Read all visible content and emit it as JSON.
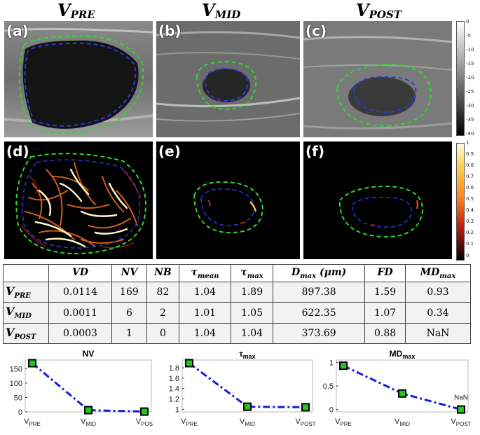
{
  "column_titles": [
    {
      "main": "V",
      "sub": "PRE"
    },
    {
      "main": "V",
      "sub": "MID"
    },
    {
      "main": "V",
      "sub": "POST"
    }
  ],
  "panels": {
    "top": [
      {
        "label": "(a)"
      },
      {
        "label": "(b)"
      },
      {
        "label": "(c)"
      }
    ],
    "bottom": [
      {
        "label": "(d)"
      },
      {
        "label": "(e)"
      },
      {
        "label": "(f)"
      }
    ]
  },
  "colorbar_top": {
    "ticks": [
      "0",
      "-5",
      "-10",
      "-15",
      "-20",
      "-25",
      "-30",
      "-35",
      "-40"
    ]
  },
  "colorbar_bottom": {
    "ticks": [
      "1",
      "0.9",
      "0.8",
      "0.7",
      "0.6",
      "0.5",
      "0.4",
      "0.3",
      "0.2",
      "0.1",
      "0"
    ]
  },
  "table": {
    "headers": [
      {
        "main": "VD",
        "sub": ""
      },
      {
        "main": "NV",
        "sub": ""
      },
      {
        "main": "NB",
        "sub": ""
      },
      {
        "main": "τ",
        "sub": "mean"
      },
      {
        "main": "τ",
        "sub": "max"
      },
      {
        "main": "D",
        "sub": "max",
        "suffix": " (μm)"
      },
      {
        "main": "FD",
        "sub": ""
      },
      {
        "main": "MD",
        "sub": "max"
      }
    ],
    "rows": [
      {
        "head": {
          "main": "V",
          "sub": "PRE"
        },
        "cells": [
          "0.0114",
          "169",
          "82",
          "1.04",
          "1.89",
          "897.38",
          "1.59",
          "0.93"
        ]
      },
      {
        "head": {
          "main": "V",
          "sub": "MID"
        },
        "cells": [
          "0.0011",
          "6",
          "2",
          "1.01",
          "1.05",
          "622.35",
          "1.07",
          "0.34"
        ]
      },
      {
        "head": {
          "main": "V",
          "sub": "POST"
        },
        "cells": [
          "0.0003",
          "1",
          "0",
          "1.04",
          "1.04",
          "373.69",
          "0.88",
          "NaN"
        ]
      }
    ]
  },
  "chart_data": [
    {
      "type": "line",
      "title": "NV",
      "title_sub": "",
      "categories": [
        "V_PRE",
        "V_MID",
        "V_POST"
      ],
      "category_labels": [
        {
          "main": "V",
          "sub": "PRE"
        },
        {
          "main": "V",
          "sub": "MID"
        },
        {
          "main": "V",
          "sub": "POS"
        }
      ],
      "values": [
        169,
        6,
        1
      ],
      "ylim": [
        0,
        180
      ],
      "yticks": [
        "0",
        "50",
        "100",
        "150"
      ],
      "ytick_values": [
        0,
        50,
        100,
        150
      ],
      "annotation": "",
      "line_color": "#1a1adb",
      "marker_color": "#22c522"
    },
    {
      "type": "line",
      "title": "τ",
      "title_sub": "max",
      "categories": [
        "V_PRE",
        "V_MID",
        "V_POST"
      ],
      "category_labels": [
        {
          "main": "V",
          "sub": "PRE"
        },
        {
          "main": "V",
          "sub": "MID"
        },
        {
          "main": "V",
          "sub": "POST"
        }
      ],
      "values": [
        1.89,
        1.05,
        1.04
      ],
      "ylim": [
        0.95,
        1.95
      ],
      "yticks": [
        "1",
        "1.2",
        "1.4",
        "1.6",
        "1.8"
      ],
      "ytick_values": [
        1,
        1.2,
        1.4,
        1.6,
        1.8
      ],
      "annotation": "",
      "line_color": "#1a1adb",
      "marker_color": "#22c522"
    },
    {
      "type": "line",
      "title": "MD",
      "title_sub": "max",
      "categories": [
        "V_PRE",
        "V_MID",
        "V_POST"
      ],
      "category_labels": [
        {
          "main": "V",
          "sub": "PRE"
        },
        {
          "main": "V",
          "sub": "MID"
        },
        {
          "main": "V",
          "sub": "POST"
        }
      ],
      "values": [
        0.93,
        0.34,
        0.0
      ],
      "ylim": [
        -0.05,
        1.05
      ],
      "yticks": [
        "0",
        "0.5",
        "1"
      ],
      "ytick_values": [
        0,
        0.5,
        1
      ],
      "annotation": "NaN",
      "line_color": "#1a1adb",
      "marker_color": "#22c522"
    }
  ]
}
